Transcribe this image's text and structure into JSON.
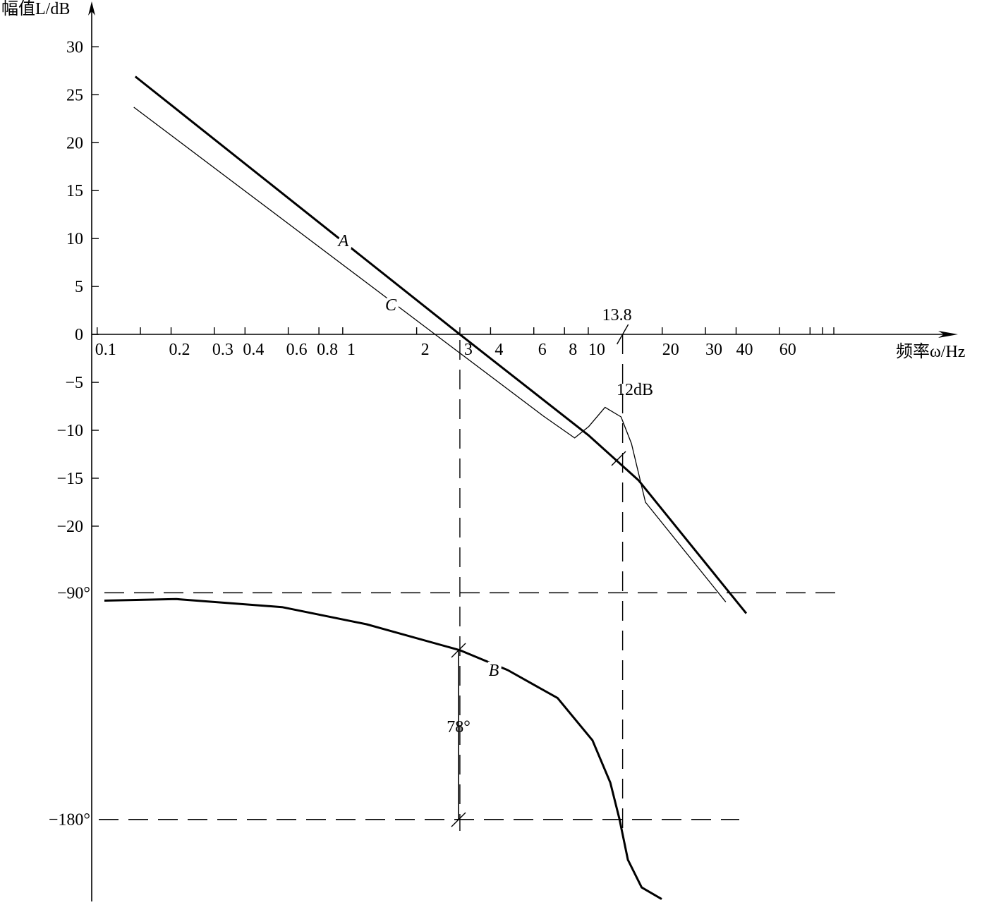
{
  "chart_data": {
    "type": "line",
    "y_label": "幅值L/dB",
    "x_label": "频率ω/Hz",
    "log_x": true,
    "xlim": [
      0.095,
      314
    ],
    "xticks": [
      0.1,
      0.2,
      0.3,
      0.4,
      0.6,
      0.8,
      1,
      2,
      3,
      4,
      6,
      8,
      10,
      20,
      30,
      40,
      60
    ],
    "xminor_ticks": [
      0.15,
      80,
      90,
      100
    ],
    "ylim": [
      -59,
      34
    ],
    "yticks": [
      30,
      25,
      20,
      15,
      10,
      5,
      0,
      {
        "value": -5,
        "label": "−5"
      },
      {
        "value": -10,
        "label": "−10"
      },
      {
        "value": -15,
        "label": "−15"
      },
      {
        "value": -20,
        "label": "−20"
      }
    ],
    "y2lim": [
      -212,
      142
    ],
    "y2ticks": [
      {
        "value": -90,
        "label": "−90°"
      },
      {
        "value": -180,
        "label": "−180°"
      }
    ],
    "crossover": 13.8,
    "annotations": [
      "12dB",
      "78°"
    ],
    "series": [
      {
        "name": "A",
        "color": "#000000",
        "width": 3,
        "x": [
          0.143,
          3,
          10,
          16,
          44
        ],
        "values": [
          26.9,
          0,
          -10.5,
          -15.2,
          -29.1
        ]
      },
      {
        "name": "C",
        "color": "#000000",
        "width": 1.3,
        "x": [
          0.141,
          2.38,
          6.55,
          8.8,
          10.05,
          11.7,
          13.6,
          15,
          17.1,
          36.3
        ],
        "values": [
          23.7,
          0,
          -8.5,
          -10.8,
          -9.6,
          -7.6,
          -8.6,
          -11.4,
          -17.5,
          -27.9
        ]
      },
      {
        "name": "B",
        "color": "#000000",
        "width": 3,
        "axis": "y2",
        "x": [
          0.107,
          0.21,
          0.566,
          1.25,
          3,
          4.7,
          7.5,
          10.4,
          12.3,
          13.4,
          14.5,
          16.5,
          19.9
        ],
        "values": [
          -93.1,
          -92.5,
          -95.7,
          -102.5,
          -112.8,
          -120.7,
          -131.8,
          -148.6,
          -165.4,
          -179.9,
          -196,
          -207,
          -211.6
        ]
      }
    ]
  }
}
